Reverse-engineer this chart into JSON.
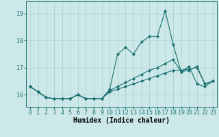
{
  "title": "",
  "xlabel": "Humidex (Indice chaleur)",
  "bg_color": "#cce8e8",
  "line_color": "#1a7070",
  "x_values": [
    0,
    1,
    2,
    3,
    4,
    5,
    6,
    7,
    8,
    9,
    10,
    11,
    12,
    13,
    14,
    15,
    16,
    17,
    18,
    19,
    20,
    21,
    22,
    23
  ],
  "series": [
    [
      16.3,
      16.1,
      15.9,
      15.85,
      15.85,
      15.85,
      16.0,
      15.85,
      15.85,
      15.85,
      16.2,
      17.5,
      17.75,
      17.5,
      17.95,
      18.15,
      18.15,
      19.1,
      17.85,
      16.85,
      17.05,
      16.4,
      16.3,
      16.5
    ],
    [
      16.3,
      16.1,
      15.9,
      15.85,
      15.85,
      15.85,
      16.0,
      15.85,
      15.85,
      15.85,
      16.15,
      16.3,
      16.45,
      16.6,
      16.75,
      16.9,
      17.0,
      17.15,
      17.3,
      16.85,
      16.9,
      17.05,
      16.4,
      16.5
    ],
    [
      16.3,
      16.1,
      15.9,
      15.85,
      15.85,
      15.85,
      16.0,
      15.85,
      15.85,
      15.85,
      16.1,
      16.2,
      16.3,
      16.4,
      16.5,
      16.6,
      16.7,
      16.8,
      16.9,
      16.9,
      16.95,
      17.0,
      16.4,
      16.5
    ]
  ],
  "ylim": [
    15.55,
    19.45
  ],
  "yticks": [
    16,
    17,
    18,
    19
  ],
  "xticks": [
    0,
    1,
    2,
    3,
    4,
    5,
    6,
    7,
    8,
    9,
    10,
    11,
    12,
    13,
    14,
    15,
    16,
    17,
    18,
    19,
    20,
    21,
    22,
    23
  ],
  "grid_color": "#aacccc",
  "marker": "D",
  "markersize": 2.0,
  "linewidth": 0.8,
  "label_fontsize": 7,
  "tick_fontsize": 6
}
